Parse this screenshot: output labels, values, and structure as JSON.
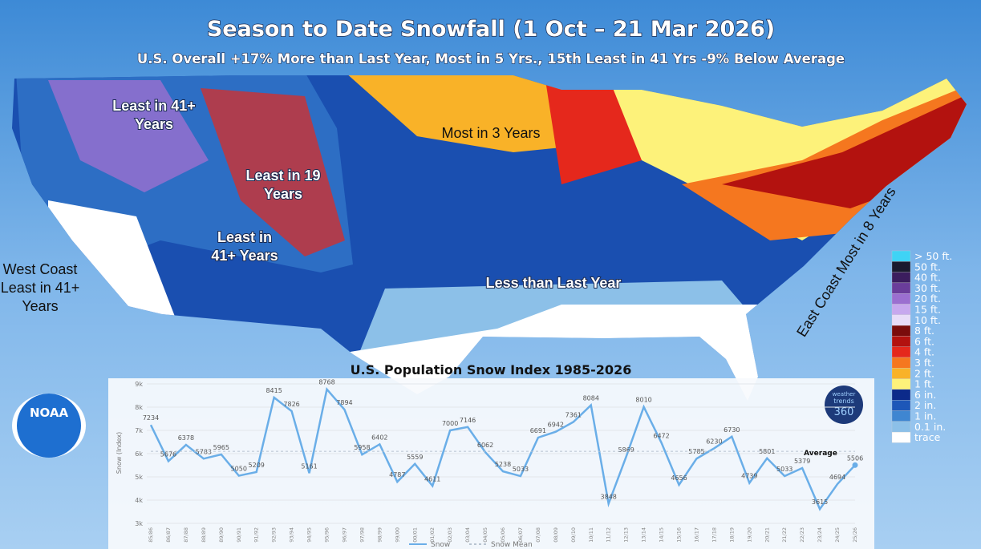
{
  "title": "Season to Date Snowfall (1 Oct – 21 Mar 2026)",
  "subtitle": "U.S. Overall +17% More than Last Year, Most in 5 Yrs., 15th Least in 41 Yrs -9% Below Average",
  "annotations": [
    {
      "lines": [
        "Least in 41+",
        "Years"
      ]
    },
    {
      "lines": [
        "Least in 19",
        "Years"
      ]
    },
    {
      "lines": [
        "Least in",
        "41+ Years"
      ]
    },
    {
      "lines": [
        "West Coast",
        "Least in 41+",
        "Years"
      ]
    },
    {
      "lines": [
        "Most in 3 Years"
      ]
    },
    {
      "lines": [
        "Less than Last Year"
      ]
    },
    {
      "lines": [
        "East Coast Most in 8 Years"
      ]
    }
  ],
  "legend": [
    {
      "label": "> 50 ft.",
      "color": "#3fd3f5"
    },
    {
      "label": "50 ft.",
      "color": "#1a1a2e"
    },
    {
      "label": "40 ft.",
      "color": "#3b1d5e"
    },
    {
      "label": "30 ft.",
      "color": "#6a3d9a"
    },
    {
      "label": "20 ft.",
      "color": "#9b6fd0"
    },
    {
      "label": "15 ft.",
      "color": "#c7a8ee"
    },
    {
      "label": "10 ft.",
      "color": "#e8dcf8"
    },
    {
      "label": "8 ft.",
      "color": "#7a0c0c"
    },
    {
      "label": "6 ft.",
      "color": "#b3120f"
    },
    {
      "label": "4 ft.",
      "color": "#e5281c"
    },
    {
      "label": "3 ft.",
      "color": "#f5771f"
    },
    {
      "label": "2 ft.",
      "color": "#f9b228"
    },
    {
      "label": "1 ft.",
      "color": "#fdf27a"
    },
    {
      "label": "6 in.",
      "color": "#0c2a8a"
    },
    {
      "label": "2 in.",
      "color": "#1d57b8"
    },
    {
      "label": "1 in.",
      "color": "#3f86d1"
    },
    {
      "label": "0.1 in.",
      "color": "#8cc0e8"
    },
    {
      "label": "trace",
      "color": "#ffffff"
    }
  ],
  "logos": {
    "noaa": "NOAA",
    "wt": [
      "weather",
      "trends",
      "360"
    ]
  },
  "chart_data": {
    "type": "line",
    "title": "U.S. Population Snow Index 1985-2026",
    "y_label": "Snow (Index)",
    "annotation": "Average",
    "categories": [
      "85/86",
      "86/87",
      "87/88",
      "88/89",
      "89/90",
      "90/91",
      "91/92",
      "92/93",
      "93/94",
      "94/95",
      "95/96",
      "96/97",
      "97/98",
      "98/99",
      "99/00",
      "00/01",
      "01/02",
      "02/03",
      "03/04",
      "04/05",
      "05/06",
      "06/07",
      "07/08",
      "08/09",
      "09/10",
      "10/11",
      "11/12",
      "12/13",
      "13/14",
      "14/15",
      "15/16",
      "16/17",
      "17/18",
      "18/19",
      "19/20",
      "20/21",
      "21/22",
      "22/23",
      "23/24",
      "24/25",
      "25/26"
    ],
    "series": [
      {
        "name": "Snow",
        "color": "#6aaee8",
        "values": [
          7234,
          5676,
          6378,
          5783,
          5965,
          5050,
          5209,
          8415,
          7826,
          5161,
          8768,
          7894,
          5958,
          6402,
          4787,
          5559,
          4611,
          7000,
          7146,
          6062,
          5238,
          5033,
          6691,
          6942,
          7361,
          8084,
          3848,
          5869,
          8010,
          6472,
          4656,
          5785,
          6230,
          6730,
          4739,
          5801,
          5033,
          5379,
          3615,
          4694,
          5506
        ]
      },
      {
        "name": "Snow Mean",
        "color": "#b8c4d0",
        "dashed": true,
        "values": [
          6100,
          6100,
          6100,
          6100,
          6100,
          6100,
          6100,
          6100,
          6100,
          6100,
          6100,
          6100,
          6100,
          6100,
          6100,
          6100,
          6100,
          6100,
          6100,
          6100,
          6100,
          6100,
          6100,
          6100,
          6100,
          6100,
          6100,
          6100,
          6100,
          6100,
          6100,
          6100,
          6100,
          6100,
          6100,
          6100,
          6100,
          6100,
          6100,
          6100,
          6100
        ]
      }
    ],
    "ylim": [
      3000,
      9000
    ],
    "yticks": [
      {
        "value": 3000,
        "label": "3k"
      },
      {
        "value": 4000,
        "label": "4k"
      },
      {
        "value": 5000,
        "label": "5k"
      },
      {
        "value": 6000,
        "label": "6k"
      },
      {
        "value": 7000,
        "label": "7k"
      },
      {
        "value": 8000,
        "label": "8k"
      },
      {
        "value": 9000,
        "label": "9k"
      }
    ],
    "grid": true
  }
}
